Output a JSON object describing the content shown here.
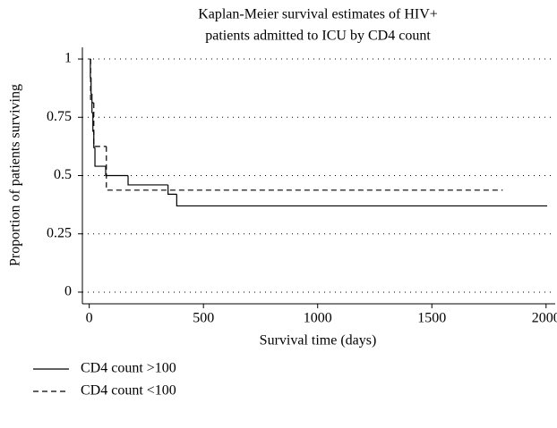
{
  "chart_data": {
    "type": "step",
    "title": [
      "Kaplan-Meier survival estimates of HIV+",
      "patients admitted to ICU by CD4 count"
    ],
    "xlabel": "Survival time (days)",
    "ylabel": "Proportion of patients surviving",
    "xlim": [
      -30,
      2040
    ],
    "ylim": [
      -0.05,
      1.05
    ],
    "xticks": [
      0,
      500,
      1000,
      1500,
      2000
    ],
    "yticks": [
      0,
      0.25,
      0.5,
      0.75,
      1
    ],
    "grid": true,
    "legend": "bottom",
    "series": [
      {
        "name": "CD4 count >100",
        "color": "#000000",
        "dash": false,
        "x": [
          0,
          5,
          8,
          12,
          16,
          20,
          25,
          72,
          170,
          345,
          383,
          2005
        ],
        "values": [
          1,
          0.92,
          0.85,
          0.77,
          0.69,
          0.62,
          0.54,
          0.5,
          0.46,
          0.42,
          0.37,
          0.37
        ]
      },
      {
        "name": "CD4 count <100",
        "color": "#000000",
        "dash": true,
        "x": [
          0,
          6,
          20,
          75,
          1810
        ],
        "values": [
          1,
          0.8125,
          0.625,
          0.4375,
          0.4375
        ]
      }
    ]
  }
}
